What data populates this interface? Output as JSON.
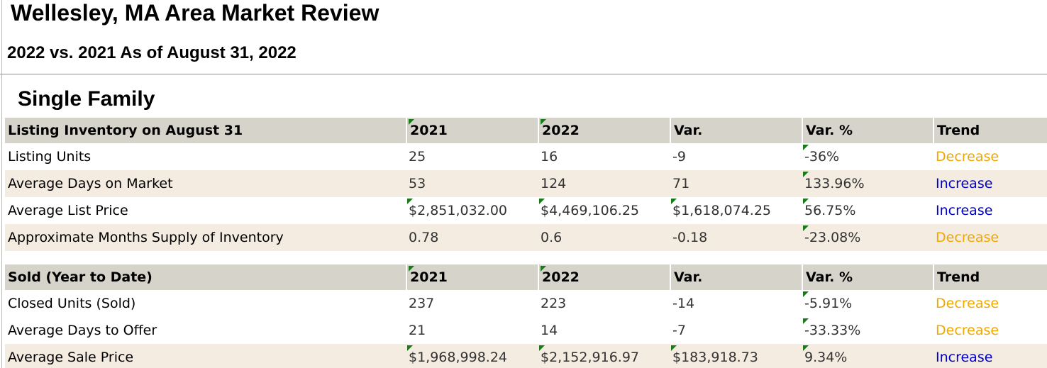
{
  "page": {
    "title": "Wellesley, MA Area Market Review",
    "subtitle": "2022 vs. 2021 As of August 31, 2022",
    "section": "Single Family"
  },
  "colors": {
    "header_background": "#d6d3ca",
    "alternate_row": "#f4ece1",
    "decrease": "#f0a800",
    "increase": "#0000cc",
    "note_marker": "#1a7a1a"
  },
  "listing": {
    "headers": [
      "Listing Inventory on August 31",
      "2021",
      "2022",
      "Var.",
      "Var. %",
      "Trend"
    ],
    "rows": [
      [
        "Listing Units",
        "25",
        "16",
        "-9",
        "-36%",
        "Decrease"
      ],
      [
        "Average Days on Market",
        "53",
        "124",
        "71",
        "133.96%",
        "Increase"
      ],
      [
        "Average List Price",
        "$2,851,032.00",
        "$4,469,106.25",
        "$1,618,074.25",
        "56.75%",
        "Increase"
      ],
      [
        "Approximate Months Supply of Inventory",
        "0.78",
        "0.6",
        "-0.18",
        "-23.08%",
        "Decrease"
      ]
    ]
  },
  "sold": {
    "headers": [
      "Sold (Year to Date)",
      "2021",
      "2022",
      "Var.",
      "Var. %",
      "Trend"
    ],
    "rows": [
      [
        "Closed Units (Sold)",
        "237",
        "223",
        "-14",
        "-5.91%",
        "Decrease"
      ],
      [
        "Average Days to Offer",
        "21",
        "14",
        "-7",
        "-33.33%",
        "Decrease"
      ],
      [
        "Average Sale Price",
        "$1,968,998.24",
        "$2,152,916.97",
        "$183,918.73",
        "9.34%",
        "Increase"
      ]
    ]
  }
}
